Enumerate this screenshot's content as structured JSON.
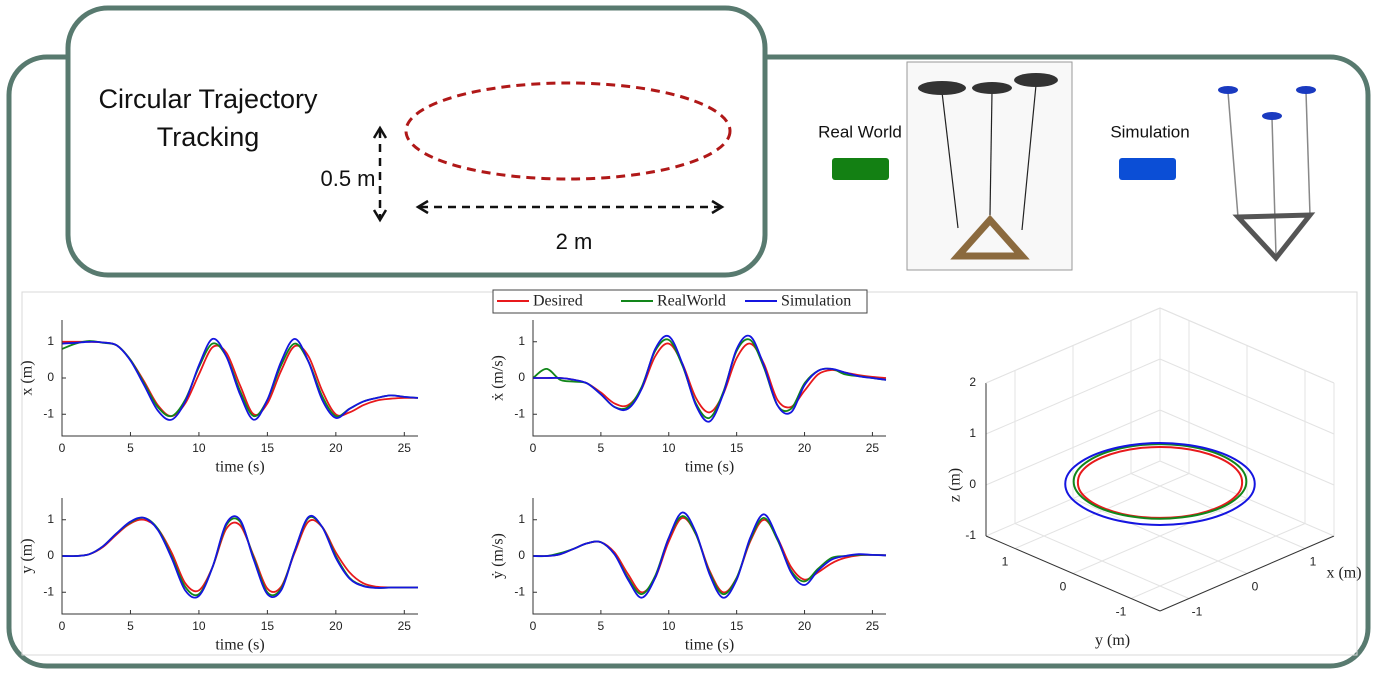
{
  "diagram": {
    "title": "Circular Trajectory Tracking",
    "height_label": "0.5 m",
    "width_label": "2 m",
    "real_label": "Real World",
    "sim_label": "Simulation"
  },
  "chart_data": [
    {
      "type": "line",
      "ylabel": "x (m)",
      "xlabel": "time (s)",
      "x": [
        0,
        1,
        2,
        3,
        4,
        5,
        6,
        7,
        8,
        9,
        10,
        11,
        12,
        13,
        14,
        15,
        16,
        17,
        18,
        19,
        20,
        21,
        22,
        23,
        24,
        25,
        26
      ],
      "xlim": [
        0,
        26
      ],
      "xticks": [
        0,
        5,
        10,
        15,
        20,
        25
      ],
      "ylim": [
        -1.6,
        1.6
      ],
      "yticks": [
        -1,
        0,
        1
      ],
      "series": [
        {
          "name": "Desired",
          "color": "#e8191c",
          "values": [
            1,
            1,
            1,
            0.98,
            0.9,
            0.5,
            -0.1,
            -0.75,
            -1.05,
            -0.7,
            0.1,
            0.85,
            0.7,
            -0.2,
            -1.0,
            -0.7,
            0.2,
            0.88,
            0.6,
            -0.35,
            -1.0,
            -0.95,
            -0.75,
            -0.62,
            -0.57,
            -0.55,
            -0.55
          ]
        },
        {
          "name": "RealWorld",
          "color": "#12861a",
          "values": [
            0.8,
            0.95,
            1.02,
            0.97,
            0.9,
            0.5,
            -0.15,
            -0.8,
            -1.05,
            -0.6,
            0.3,
            0.95,
            0.6,
            -0.35,
            -1.05,
            -0.6,
            0.35,
            0.95,
            0.45,
            -0.5,
            -1.05,
            -0.85,
            -0.65,
            -0.55,
            -0.48,
            -0.52,
            -0.55
          ]
        },
        {
          "name": "Simulation",
          "color": "#1515e0",
          "values": [
            0.95,
            0.97,
            1,
            0.98,
            0.9,
            0.48,
            -0.2,
            -0.9,
            -1.15,
            -0.65,
            0.35,
            1.08,
            0.6,
            -0.45,
            -1.15,
            -0.6,
            0.45,
            1.08,
            0.45,
            -0.6,
            -1.1,
            -0.85,
            -0.65,
            -0.55,
            -0.48,
            -0.52,
            -0.55
          ]
        }
      ]
    },
    {
      "type": "line",
      "ylabel": "ẋ (m/s)",
      "xlabel": "time (s)",
      "x": [
        0,
        1,
        2,
        3,
        4,
        5,
        6,
        7,
        8,
        9,
        10,
        11,
        12,
        13,
        14,
        15,
        16,
        17,
        18,
        19,
        20,
        21,
        22,
        23,
        24,
        25,
        26
      ],
      "xlim": [
        0,
        26
      ],
      "xticks": [
        0,
        5,
        10,
        15,
        20,
        25
      ],
      "ylim": [
        -1.6,
        1.6
      ],
      "yticks": [
        -1,
        0,
        1
      ],
      "series": [
        {
          "color": "#e8191c",
          "values": [
            0,
            0,
            0,
            -0.05,
            -0.15,
            -0.4,
            -0.7,
            -0.75,
            -0.3,
            0.6,
            0.95,
            0.4,
            -0.55,
            -0.95,
            -0.45,
            0.55,
            0.95,
            0.4,
            -0.6,
            -0.8,
            -0.35,
            0.1,
            0.22,
            0.15,
            0.08,
            0.03,
            0
          ]
        },
        {
          "color": "#12861a",
          "values": [
            0,
            0.25,
            -0.05,
            -0.1,
            -0.15,
            -0.45,
            -0.8,
            -0.8,
            -0.25,
            0.75,
            1.05,
            0.35,
            -0.7,
            -1.1,
            -0.4,
            0.75,
            1.05,
            0.3,
            -0.75,
            -0.85,
            -0.15,
            0.2,
            0.25,
            0.1,
            0.05,
            0,
            -0.05
          ]
        },
        {
          "color": "#1515e0",
          "values": [
            0,
            0,
            0,
            -0.05,
            -0.15,
            -0.45,
            -0.8,
            -0.85,
            -0.3,
            0.8,
            1.15,
            0.4,
            -0.75,
            -1.2,
            -0.45,
            0.8,
            1.15,
            0.35,
            -0.75,
            -0.95,
            -0.2,
            0.2,
            0.25,
            0.15,
            0.05,
            0,
            -0.05
          ]
        }
      ]
    },
    {
      "type": "line",
      "ylabel": "y (m)",
      "xlabel": "time (s)",
      "x": [
        0,
        1,
        2,
        3,
        4,
        5,
        6,
        7,
        8,
        9,
        10,
        11,
        12,
        13,
        14,
        15,
        16,
        17,
        18,
        19,
        20,
        21,
        22,
        23,
        24,
        25,
        26
      ],
      "xlim": [
        0,
        26
      ],
      "xticks": [
        0,
        5,
        10,
        15,
        20,
        25
      ],
      "ylim": [
        -1.6,
        1.6
      ],
      "yticks": [
        -1,
        0,
        1
      ],
      "series": [
        {
          "color": "#e8191c",
          "values": [
            0,
            0,
            0.05,
            0.25,
            0.6,
            0.9,
            1.0,
            0.75,
            0.1,
            -0.75,
            -0.95,
            -0.3,
            0.75,
            0.85,
            0,
            -0.9,
            -0.85,
            0.1,
            0.95,
            0.8,
            0.1,
            -0.45,
            -0.75,
            -0.85,
            -0.87,
            -0.87,
            -0.87
          ]
        },
        {
          "color": "#12861a",
          "values": [
            0,
            0,
            0.05,
            0.27,
            0.63,
            0.93,
            1.05,
            0.75,
            0,
            -0.85,
            -1.05,
            -0.3,
            0.85,
            0.95,
            -0.05,
            -1.0,
            -0.9,
            0.15,
            1.05,
            0.8,
            0,
            -0.6,
            -0.82,
            -0.88,
            -0.87,
            -0.87,
            -0.87
          ]
        },
        {
          "color": "#1515e0",
          "values": [
            0,
            0,
            0.05,
            0.27,
            0.63,
            0.95,
            1.05,
            0.72,
            -0.05,
            -0.95,
            -1.1,
            -0.3,
            0.9,
            1.0,
            -0.1,
            -1.05,
            -0.95,
            0.15,
            1.08,
            0.8,
            -0.05,
            -0.62,
            -0.83,
            -0.88,
            -0.87,
            -0.87,
            -0.87
          ]
        }
      ]
    },
    {
      "type": "line",
      "ylabel": "ẏ (m/s)",
      "xlabel": "time (s)",
      "x": [
        0,
        1,
        2,
        3,
        4,
        5,
        6,
        7,
        8,
        9,
        10,
        11,
        12,
        13,
        14,
        15,
        16,
        17,
        18,
        19,
        20,
        21,
        22,
        23,
        24,
        25,
        26
      ],
      "xlim": [
        0,
        26
      ],
      "xticks": [
        0,
        5,
        10,
        15,
        20,
        25
      ],
      "ylim": [
        -1.6,
        1.6
      ],
      "yticks": [
        -1,
        0,
        1
      ],
      "series": [
        {
          "color": "#e8191c",
          "values": [
            0,
            0,
            0.05,
            0.2,
            0.35,
            0.38,
            0.1,
            -0.5,
            -1.0,
            -0.6,
            0.4,
            1.05,
            0.6,
            -0.4,
            -1.0,
            -0.6,
            0.4,
            1.0,
            0.5,
            -0.3,
            -0.65,
            -0.45,
            -0.2,
            -0.05,
            0.02,
            0.03,
            0.02
          ]
        },
        {
          "color": "#12861a",
          "values": [
            0,
            0,
            0.08,
            0.2,
            0.35,
            0.38,
            0.05,
            -0.6,
            -1.05,
            -0.55,
            0.5,
            1.1,
            0.6,
            -0.45,
            -1.05,
            -0.6,
            0.45,
            1.05,
            0.45,
            -0.4,
            -0.7,
            -0.35,
            -0.05,
            0,
            0.03,
            0.03,
            0.02
          ]
        },
        {
          "color": "#1515e0",
          "values": [
            0,
            0,
            0.05,
            0.2,
            0.35,
            0.38,
            0.05,
            -0.65,
            -1.15,
            -0.6,
            0.5,
            1.2,
            0.65,
            -0.5,
            -1.15,
            -0.65,
            0.5,
            1.15,
            0.5,
            -0.45,
            -0.8,
            -0.4,
            -0.1,
            0,
            0.05,
            0.03,
            0.02
          ]
        }
      ]
    },
    {
      "type": "line3d",
      "xlabel": "x (m)",
      "ylabel": "y (m)",
      "zlabel": "z (m)",
      "xlim": [
        -1.5,
        1.5
      ],
      "xticks": [
        -1,
        0,
        1
      ],
      "ylim": [
        -1.5,
        1.5
      ],
      "yticks": [
        -1,
        0,
        1
      ],
      "zlim": [
        -1,
        2
      ],
      "zticks": [
        -1,
        0,
        1,
        2
      ],
      "series": [
        {
          "color": "#e8191c",
          "x": [
            1,
            0.87,
            0.5,
            0,
            -0.5,
            -0.87,
            -1,
            -0.87,
            -0.5,
            0,
            0.5,
            0.87,
            1
          ],
          "y": [
            0,
            0.5,
            0.87,
            1,
            0.87,
            0.5,
            0,
            -0.5,
            -0.87,
            -1,
            -0.87,
            -0.5,
            0
          ],
          "z": [
            0.05,
            0.05,
            0.05,
            0.05,
            0.05,
            0.05,
            0.05,
            0.05,
            0.05,
            0.05,
            0.05,
            0.05,
            0.05
          ]
        },
        {
          "color": "#12861a",
          "x": [
            1.05,
            0.91,
            0.53,
            0,
            -0.53,
            -0.91,
            -1.05,
            -0.91,
            -0.53,
            0,
            0.53,
            0.91,
            1.05
          ],
          "y": [
            0,
            0.53,
            0.91,
            1.05,
            0.91,
            0.53,
            0,
            -0.53,
            -0.91,
            -1.05,
            -0.91,
            -0.53,
            0
          ],
          "z": [
            0.07,
            0.07,
            0.07,
            0.07,
            0.07,
            0.07,
            0.07,
            0.07,
            0.07,
            0.07,
            0.07,
            0.07,
            0.07
          ]
        },
        {
          "color": "#1515e0",
          "x": [
            1.15,
            1,
            0.58,
            0,
            -0.58,
            -1,
            -1.15,
            -1,
            -0.58,
            0,
            0.58,
            1,
            1.15
          ],
          "y": [
            0,
            0.58,
            1,
            1.15,
            1,
            0.58,
            0,
            -0.58,
            -1,
            -1.15,
            -1,
            -0.58,
            0
          ],
          "z": [
            0.02,
            0.02,
            0.02,
            0.02,
            0.02,
            0.02,
            0.02,
            0.02,
            0.02,
            0.02,
            0.02,
            0.02,
            0.02
          ]
        }
      ]
    }
  ]
}
